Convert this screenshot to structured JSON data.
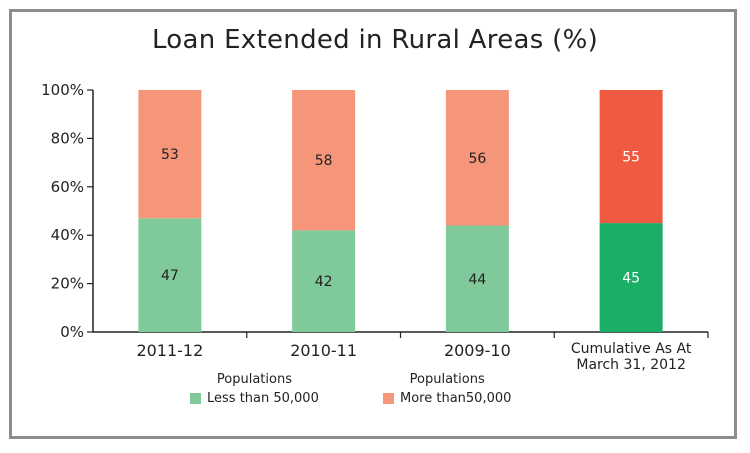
{
  "chart_data": {
    "type": "bar",
    "stacked": true,
    "percent": true,
    "title": "Loan Extended in Rural Areas (%)",
    "categories": [
      "2011-12",
      "2010-11",
      "2009-10",
      "Cumulative As At\nMarch 31, 2012"
    ],
    "series": [
      {
        "name": "Less than 50,000",
        "group_label": "Populations",
        "values": [
          47,
          42,
          44,
          45
        ]
      },
      {
        "name": "More than50,000",
        "group_label": "Populations",
        "values": [
          53,
          58,
          56,
          55
        ]
      }
    ],
    "colors": {
      "less": "#80c99a",
      "more": "#f5967a",
      "less_highlight": "#1aae66",
      "more_highlight": "#f05a40"
    },
    "yticks": [
      "0%",
      "20%",
      "40%",
      "60%",
      "80%",
      "100%"
    ],
    "ylim": [
      0,
      100
    ],
    "legend_position": "bottom"
  }
}
